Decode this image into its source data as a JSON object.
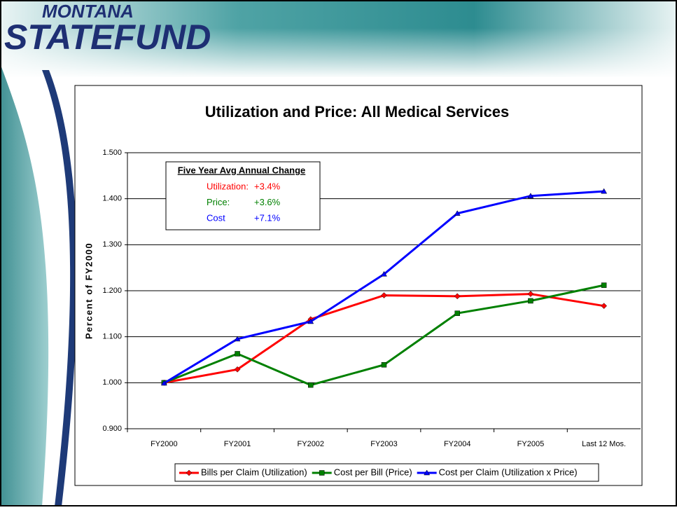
{
  "logo": {
    "line1": "MONTANA",
    "line2": "STATEFUND"
  },
  "chart_data": {
    "type": "line",
    "title": "Utilization and Price:  All Medical Services",
    "y_label": "Percent of FY2000",
    "categories": [
      "FY2000",
      "FY2001",
      "FY2002",
      "FY2003",
      "FY2004",
      "FY2005",
      "Last 12 Mos."
    ],
    "series": [
      {
        "name": "Bills per Claim (Utilization)",
        "color": "#ff0000",
        "marker": "diamond",
        "values": [
          1.0,
          1.029,
          1.138,
          1.19,
          1.188,
          1.193,
          1.167
        ]
      },
      {
        "name": "Cost per Bill (Price)",
        "color": "#008000",
        "marker": "square",
        "values": [
          1.0,
          1.063,
          0.995,
          1.039,
          1.151,
          1.178,
          1.212
        ]
      },
      {
        "name": "Cost per Claim (Utilization x Price)",
        "color": "#0000ff",
        "marker": "triangle",
        "values": [
          0.999,
          1.095,
          1.133,
          1.236,
          1.368,
          1.406,
          1.416
        ]
      }
    ],
    "ylim": [
      0.9,
      1.5
    ],
    "yticks": [
      {
        "value": 0.9,
        "label": "0.900"
      },
      {
        "value": 1.0,
        "label": "1.000"
      },
      {
        "value": 1.1,
        "label": "1.100"
      },
      {
        "value": 1.2,
        "label": "1.200"
      },
      {
        "value": 1.3,
        "label": "1.300"
      },
      {
        "value": 1.4,
        "label": "1.400"
      },
      {
        "value": 1.5,
        "label": "1.500"
      }
    ],
    "grid": true,
    "legend": "bottom",
    "annotation": {
      "title": "Five Year Avg Annual Change",
      "rows": [
        {
          "label": "Utilization:",
          "value": "+3.4%",
          "color": "#ff0000"
        },
        {
          "label": "Price:",
          "value": "+3.6%",
          "color": "#008000"
        },
        {
          "label": "Cost",
          "value": "+7.1%",
          "color": "#0000ff"
        }
      ]
    }
  }
}
